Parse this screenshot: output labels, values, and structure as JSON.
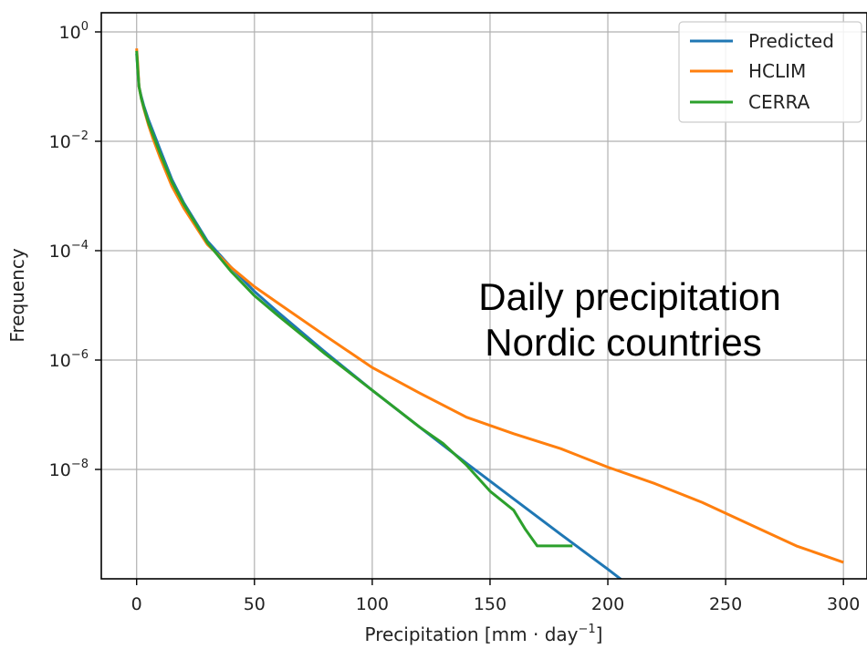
{
  "chart_data": {
    "type": "line",
    "title": "",
    "xlabel": "Precipitation [mm · day",
    "xlabel_sup": "−1",
    "xlabel_close": "]",
    "ylabel": "Frequency",
    "xlim": [
      -15,
      310
    ],
    "ylim_exponent": [
      -10.0,
      0.35
    ],
    "yscale": "log",
    "grid": true,
    "legend_position": "top-right",
    "x_ticks": [
      0,
      50,
      100,
      150,
      200,
      250,
      300
    ],
    "y_ticks": [
      {
        "base": "10",
        "exp": "0",
        "value": 1
      },
      {
        "base": "10",
        "exp": "−2",
        "value": 0.01
      },
      {
        "base": "10",
        "exp": "−4",
        "value": 0.0001
      },
      {
        "base": "10",
        "exp": "−6",
        "value": 1e-06
      },
      {
        "base": "10",
        "exp": "−8",
        "value": 1e-08
      }
    ],
    "annotation": [
      "Daily precipitation",
      "Nordic countries"
    ],
    "series": [
      {
        "name": "Predicted",
        "color": "#1f77b4",
        "x": [
          0,
          0.5,
          1,
          2,
          3,
          5,
          7,
          10,
          15,
          20,
          30,
          40,
          50,
          60,
          80,
          100,
          120,
          140,
          160,
          180,
          200,
          212
        ],
        "y": [
          0.4,
          0.2,
          0.1,
          0.065,
          0.045,
          0.025,
          0.015,
          0.007,
          0.002,
          0.00075,
          0.00015,
          5e-05,
          1.8e-05,
          7.5e-06,
          1.4e-06,
          2.8e-07,
          6e-08,
          1.3e-08,
          2.9e-09,
          6.5e-10,
          1.5e-10,
          6e-11
        ]
      },
      {
        "name": "HCLIM",
        "color": "#ff7f0e",
        "x": [
          0,
          0.5,
          1,
          2,
          3,
          5,
          7,
          10,
          15,
          20,
          30,
          40,
          50,
          60,
          80,
          100,
          120,
          140,
          160,
          180,
          200,
          220,
          240,
          260,
          280,
          300
        ],
        "y": [
          0.5,
          0.25,
          0.1,
          0.06,
          0.04,
          0.02,
          0.011,
          0.005,
          0.0015,
          0.0006,
          0.00013,
          5e-05,
          2.2e-05,
          1.1e-05,
          2.8e-06,
          7.3e-07,
          2.5e-07,
          9e-08,
          4.5e-08,
          2.4e-08,
          1.1e-08,
          5.5e-09,
          2.5e-09,
          1e-09,
          4e-10,
          2e-10
        ]
      },
      {
        "name": "CERRA",
        "color": "#2ca02c",
        "x": [
          0,
          0.5,
          1,
          2,
          3,
          5,
          7,
          10,
          15,
          20,
          30,
          40,
          50,
          60,
          80,
          100,
          110,
          120,
          130,
          140,
          150,
          160,
          165,
          170,
          175,
          180,
          185
        ],
        "y": [
          0.45,
          0.2,
          0.1,
          0.06,
          0.042,
          0.022,
          0.013,
          0.006,
          0.0018,
          0.0007,
          0.00014,
          4.2e-05,
          1.5e-05,
          6.5e-06,
          1.3e-06,
          2.8e-07,
          1.3e-07,
          6e-08,
          3e-08,
          1.2e-08,
          4e-09,
          1.8e-09,
          8e-10,
          4e-10,
          4e-10,
          4e-10,
          4e-10
        ]
      }
    ]
  }
}
